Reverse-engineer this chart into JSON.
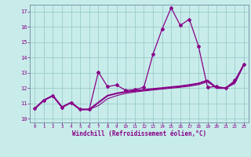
{
  "xlabel": "Windchill (Refroidissement éolien,°C)",
  "bg_color": "#c8ecea",
  "line_color": "#880088",
  "grid_color": "#99cccc",
  "xlim_min": -0.5,
  "xlim_max": 23.5,
  "ylim_min": 9.75,
  "ylim_max": 17.45,
  "yticks": [
    10,
    11,
    12,
    13,
    14,
    15,
    16,
    17
  ],
  "xticks": [
    0,
    1,
    2,
    3,
    4,
    5,
    6,
    7,
    8,
    9,
    10,
    11,
    12,
    13,
    14,
    15,
    16,
    17,
    18,
    19,
    20,
    21,
    22,
    23
  ],
  "line1_x": [
    0,
    1,
    2,
    3,
    4,
    5,
    6,
    7,
    8,
    9,
    10,
    11,
    12,
    13,
    14,
    15,
    16,
    17,
    18,
    19,
    20,
    21,
    22,
    23
  ],
  "line1_y": [
    10.65,
    11.2,
    11.5,
    10.75,
    11.05,
    10.6,
    10.6,
    13.05,
    12.1,
    12.2,
    11.85,
    11.9,
    12.05,
    14.2,
    15.85,
    17.25,
    16.1,
    16.5,
    14.75,
    12.05,
    12.1,
    12.0,
    12.5,
    13.55
  ],
  "line2_x": [
    0,
    1,
    2,
    3,
    4,
    5,
    6,
    7,
    8,
    9,
    10,
    11,
    12,
    13,
    14,
    15,
    16,
    17,
    18,
    19,
    20,
    21,
    22,
    23
  ],
  "line2_y": [
    10.65,
    11.2,
    11.5,
    10.75,
    11.05,
    10.6,
    10.6,
    11.05,
    11.5,
    11.65,
    11.75,
    11.82,
    11.88,
    11.94,
    12.0,
    12.06,
    12.12,
    12.2,
    12.3,
    12.5,
    12.0,
    12.0,
    12.4,
    13.55
  ],
  "line3_x": [
    0,
    1,
    2,
    3,
    4,
    5,
    6,
    7,
    8,
    9,
    10,
    11,
    12,
    13,
    14,
    15,
    16,
    17,
    18,
    19,
    20,
    21,
    22,
    23
  ],
  "line3_y": [
    10.65,
    11.2,
    11.5,
    10.75,
    11.05,
    10.6,
    10.6,
    10.85,
    11.3,
    11.5,
    11.65,
    11.74,
    11.81,
    11.87,
    11.93,
    11.99,
    12.05,
    12.12,
    12.22,
    12.4,
    12.0,
    12.0,
    12.3,
    13.55
  ]
}
